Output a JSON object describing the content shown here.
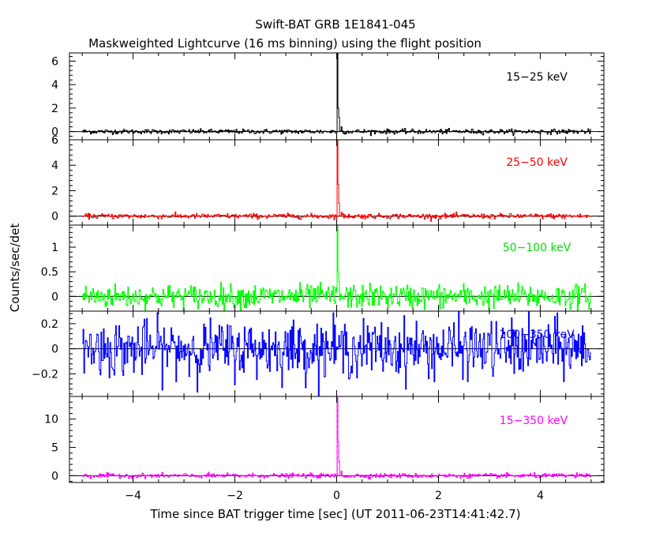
{
  "chart_data": {
    "type": "line",
    "title": "Swift-BAT GRB 1E1841-045",
    "subtitle": "Maskweighted Lightcurve (16 ms binning) using the flight position",
    "xlabel": "Time since BAT trigger time [sec] (UT 2011-06-23T14:41:42.7)",
    "ylabel": "Counts/sec/det",
    "xlim": [
      -5.25,
      5.25
    ],
    "x_ticks": [
      "−4",
      "−2",
      "0",
      "2",
      "4"
    ],
    "x_tick_values": [
      -4,
      -2,
      0,
      2,
      4
    ],
    "bin_width_sec": 0.016,
    "time_range": [
      -5.0,
      5.0
    ],
    "grid": false,
    "panels": [
      {
        "label": "15−25 keV",
        "color": "#000000",
        "ylim": [
          -0.7,
          6.7
        ],
        "y_ticks": [
          "0",
          "2",
          "4",
          "6"
        ],
        "y_tick_values": [
          0,
          2,
          4,
          6
        ],
        "noise_sigma": 0.1,
        "peak": {
          "t": 0.0,
          "value": 6.7
        },
        "decay": [
          {
            "t": 0.016,
            "value": 2.0
          },
          {
            "t": 0.032,
            "value": 1.2
          },
          {
            "t": 0.08,
            "value": 0.4
          }
        ]
      },
      {
        "label": "25−50 keV",
        "color": "#ff0000",
        "ylim": [
          -0.7,
          6.0
        ],
        "y_ticks": [
          "0",
          "2",
          "4",
          "6"
        ],
        "y_tick_values": [
          0,
          2,
          4,
          6
        ],
        "noise_sigma": 0.1,
        "peak": {
          "t": 0.0,
          "value": 6.0
        },
        "decay": [
          {
            "t": 0.016,
            "value": 2.5
          },
          {
            "t": 0.032,
            "value": 1.0
          },
          {
            "t": 0.08,
            "value": 0.3
          }
        ]
      },
      {
        "label": "50−100 keV",
        "color": "#00ff00",
        "ylim": [
          -0.3,
          1.45
        ],
        "y_ticks": [
          "0",
          "0.5",
          "1"
        ],
        "y_tick_values": [
          0,
          0.5,
          1
        ],
        "noise_sigma": 0.12,
        "peak": {
          "t": 0.0,
          "value": 1.45
        },
        "decay": [
          {
            "t": 0.016,
            "value": 0.5
          },
          {
            "t": 0.032,
            "value": 0.3
          }
        ]
      },
      {
        "label": "100−350 keV",
        "color": "#0000ff",
        "ylim": [
          -0.38,
          0.3
        ],
        "y_ticks": [
          "−0.2",
          "0",
          "0.2"
        ],
        "y_tick_values": [
          -0.2,
          0,
          0.2
        ],
        "noise_sigma": 0.11,
        "peak": null,
        "decay": []
      },
      {
        "label": "15−350 keV",
        "color": "#ff00ff",
        "ylim": [
          -1.2,
          14.0
        ],
        "y_ticks": [
          "0",
          "5",
          "10"
        ],
        "y_tick_values": [
          0,
          5,
          10
        ],
        "noise_sigma": 0.2,
        "peak": {
          "t": 0.0,
          "value": 13.8
        },
        "decay": [
          {
            "t": 0.016,
            "value": 6.0
          },
          {
            "t": 0.032,
            "value": 2.5
          },
          {
            "t": 0.08,
            "value": 0.8
          }
        ]
      }
    ]
  }
}
